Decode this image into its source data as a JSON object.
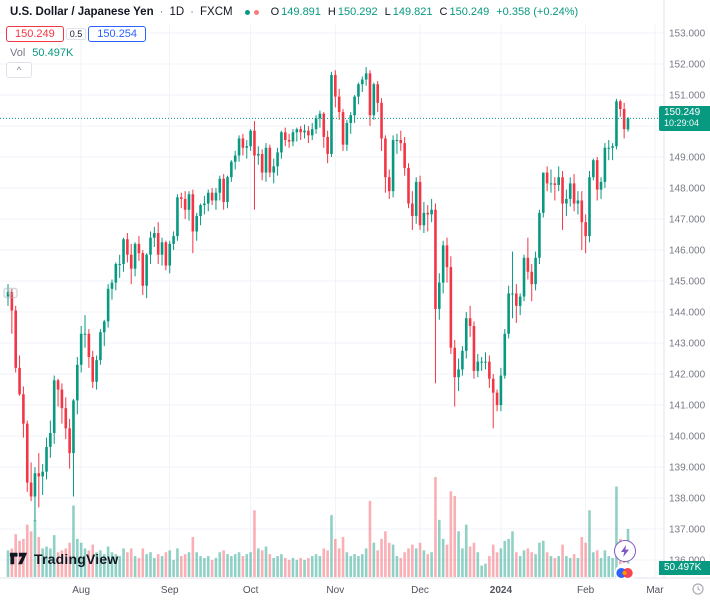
{
  "header": {
    "symbol": "U.S. Dollar / Japanese Yen",
    "sep1": "·",
    "interval": "1D",
    "sep2": "·",
    "exchange": "FXCM",
    "dots": [
      "#089981",
      "#f77c80"
    ],
    "ohlc": {
      "oL": "O",
      "o": "149.891",
      "hL": "H",
      "h": "150.292",
      "lL": "L",
      "l": "149.821",
      "cL": "C",
      "c": "150.249",
      "change": "+0.358 (+0.24%)"
    }
  },
  "trade": {
    "sell": "150.249",
    "spread": "0.5",
    "buy": "150.254"
  },
  "volume_row": {
    "label": "Vol",
    "value": "50.497K"
  },
  "controls": {
    "collapse": "^"
  },
  "logo_text": "TradingView",
  "price_label": {
    "price": "150.249",
    "countdown": "10:29:04"
  },
  "volume_axis_label": "50.497K",
  "chart_data": {
    "type": "candlestick",
    "title": "U.S. Dollar / Japanese Yen",
    "interval": "1D",
    "exchange": "FXCM",
    "last_price": 150.249,
    "last_volume_k": 50.497,
    "ohlc_display": {
      "open": 149.891,
      "high": 150.292,
      "low": 149.821,
      "close": 150.249,
      "change": 0.358,
      "change_pct": 0.24
    },
    "y_axis": {
      "min": 136,
      "max": 153,
      "step": 1,
      "grid": true
    },
    "price_ticks": [
      "153.000",
      "152.000",
      "151.000",
      "150.000",
      "149.000",
      "148.000",
      "147.000",
      "146.000",
      "145.000",
      "144.000",
      "143.000",
      "142.000",
      "141.000",
      "140.000",
      "139.000",
      "138.000",
      "137.000",
      "136.000"
    ],
    "month_ticks": [
      {
        "label": "Aug",
        "i": 19
      },
      {
        "label": "Sep",
        "i": 42
      },
      {
        "label": "Oct",
        "i": 63
      },
      {
        "label": "Nov",
        "i": 85
      },
      {
        "label": "Dec",
        "i": 107
      },
      {
        "label": "2024",
        "i": 128,
        "bold": true
      },
      {
        "label": "Feb",
        "i": 150
      },
      {
        "label": "Mar",
        "i": 168
      }
    ],
    "colors": {
      "up": "#089981",
      "down": "#f23645",
      "vol_up": "rgba(8,153,129,0.45)",
      "vol_down": "rgba(242,54,69,0.40)",
      "grid": "#f0f3fa",
      "axis_text": "#787b86",
      "time_text": "#50535e",
      "price_line": "#089981",
      "axis_border": "#e0e3eb"
    },
    "candles_format": [
      "open",
      "high",
      "low",
      "close",
      "volume_k"
    ],
    "candles": [
      [
        144.5,
        144.9,
        144.2,
        144.65,
        28
      ],
      [
        144.65,
        144.75,
        143.3,
        144.05,
        30
      ],
      [
        144.05,
        144.2,
        142.05,
        142.2,
        45
      ],
      [
        142.2,
        142.6,
        141.3,
        141.35,
        38
      ],
      [
        141.35,
        141.6,
        139.95,
        140.4,
        40
      ],
      [
        140.4,
        140.5,
        138.2,
        138.5,
        55
      ],
      [
        138.5,
        139.15,
        137.9,
        138.05,
        48
      ],
      [
        138.05,
        139.0,
        137.25,
        138.8,
        60
      ],
      [
        138.8,
        139.45,
        137.7,
        138.7,
        42
      ],
      [
        138.7,
        139.1,
        138.1,
        138.85,
        30
      ],
      [
        138.85,
        139.95,
        138.6,
        139.65,
        32
      ],
      [
        139.65,
        140.5,
        139.3,
        140.1,
        30
      ],
      [
        140.1,
        141.95,
        139.75,
        141.8,
        44
      ],
      [
        141.8,
        141.85,
        140.95,
        141.5,
        26
      ],
      [
        141.5,
        141.7,
        140.4,
        140.9,
        28
      ],
      [
        140.9,
        141.25,
        139.9,
        140.25,
        30
      ],
      [
        140.25,
        140.55,
        138.95,
        139.45,
        36
      ],
      [
        139.45,
        141.2,
        138.05,
        141.15,
        75
      ],
      [
        141.15,
        142.55,
        140.7,
        142.3,
        40
      ],
      [
        142.3,
        143.55,
        142.05,
        143.3,
        36
      ],
      [
        143.3,
        143.9,
        142.85,
        143.3,
        30
      ],
      [
        143.3,
        143.45,
        142.2,
        142.55,
        28
      ],
      [
        142.55,
        142.75,
        141.55,
        141.75,
        34
      ],
      [
        141.75,
        142.6,
        141.5,
        142.45,
        26
      ],
      [
        142.45,
        143.45,
        142.3,
        143.35,
        28
      ],
      [
        143.35,
        143.75,
        142.9,
        143.7,
        24
      ],
      [
        143.7,
        144.9,
        143.5,
        144.75,
        32
      ],
      [
        144.75,
        145.05,
        144.4,
        144.95,
        26
      ],
      [
        144.95,
        145.6,
        144.7,
        145.55,
        24
      ],
      [
        145.55,
        145.85,
        145.1,
        145.55,
        22
      ],
      [
        145.55,
        146.4,
        145.3,
        146.35,
        30
      ],
      [
        146.35,
        146.55,
        145.6,
        145.85,
        26
      ],
      [
        145.85,
        146.2,
        144.9,
        145.4,
        30
      ],
      [
        145.4,
        146.25,
        145.15,
        146.2,
        22
      ],
      [
        146.2,
        146.45,
        145.65,
        145.9,
        20
      ],
      [
        145.9,
        146.0,
        144.55,
        144.85,
        30
      ],
      [
        144.85,
        145.9,
        144.45,
        145.85,
        24
      ],
      [
        145.85,
        146.6,
        145.55,
        146.4,
        26
      ],
      [
        146.4,
        146.75,
        146.1,
        146.55,
        20
      ],
      [
        146.55,
        146.9,
        145.55,
        145.85,
        24
      ],
      [
        145.85,
        146.4,
        145.5,
        146.25,
        22
      ],
      [
        146.25,
        146.3,
        145.35,
        145.5,
        26
      ],
      [
        145.5,
        146.3,
        145.25,
        146.2,
        28
      ],
      [
        146.2,
        146.6,
        146.0,
        146.45,
        18
      ],
      [
        146.45,
        147.8,
        146.3,
        147.7,
        30
      ],
      [
        147.7,
        147.85,
        147.35,
        147.65,
        22
      ],
      [
        147.65,
        147.9,
        147.0,
        147.3,
        24
      ],
      [
        147.3,
        147.9,
        146.95,
        147.8,
        26
      ],
      [
        147.8,
        147.95,
        145.9,
        146.6,
        42
      ],
      [
        146.6,
        147.2,
        146.3,
        147.1,
        26
      ],
      [
        147.1,
        147.5,
        146.8,
        147.45,
        22
      ],
      [
        147.45,
        147.75,
        147.15,
        147.5,
        20
      ],
      [
        147.5,
        147.95,
        147.25,
        147.85,
        22
      ],
      [
        147.85,
        148.0,
        147.45,
        147.6,
        18
      ],
      [
        147.6,
        148.0,
        147.3,
        147.85,
        20
      ],
      [
        147.85,
        148.4,
        147.6,
        148.3,
        26
      ],
      [
        148.3,
        148.45,
        147.3,
        147.55,
        28
      ],
      [
        147.55,
        148.4,
        147.35,
        148.35,
        24
      ],
      [
        148.35,
        148.9,
        148.2,
        148.85,
        22
      ],
      [
        148.85,
        149.2,
        148.6,
        149.05,
        24
      ],
      [
        149.05,
        149.7,
        148.85,
        149.6,
        26
      ],
      [
        149.6,
        149.75,
        149.05,
        149.3,
        22
      ],
      [
        149.3,
        149.55,
        148.95,
        149.35,
        24
      ],
      [
        149.35,
        149.9,
        149.2,
        149.85,
        26
      ],
      [
        149.85,
        150.16,
        147.3,
        149.05,
        70
      ],
      [
        149.05,
        149.35,
        148.75,
        149.1,
        30
      ],
      [
        149.1,
        149.25,
        148.25,
        148.5,
        28
      ],
      [
        148.5,
        149.45,
        148.2,
        149.3,
        32
      ],
      [
        149.3,
        149.4,
        148.35,
        148.5,
        24
      ],
      [
        148.5,
        148.95,
        148.15,
        148.7,
        20
      ],
      [
        148.7,
        149.3,
        148.4,
        149.15,
        22
      ],
      [
        149.15,
        149.85,
        148.95,
        149.8,
        24
      ],
      [
        149.8,
        149.95,
        149.35,
        149.55,
        20
      ],
      [
        149.55,
        149.75,
        149.3,
        149.5,
        18
      ],
      [
        149.5,
        149.9,
        149.35,
        149.8,
        20
      ],
      [
        149.8,
        149.95,
        149.5,
        149.9,
        18
      ],
      [
        149.9,
        150.0,
        149.55,
        149.8,
        20
      ],
      [
        149.8,
        150.05,
        149.6,
        149.85,
        18
      ],
      [
        149.85,
        150.0,
        149.45,
        149.7,
        20
      ],
      [
        149.7,
        150.1,
        149.55,
        149.9,
        22
      ],
      [
        149.9,
        150.35,
        149.75,
        150.25,
        24
      ],
      [
        150.25,
        150.5,
        149.95,
        150.4,
        22
      ],
      [
        150.4,
        150.45,
        149.3,
        149.65,
        30
      ],
      [
        149.65,
        149.85,
        148.8,
        149.1,
        28
      ],
      [
        149.1,
        151.75,
        149.0,
        151.65,
        65
      ],
      [
        151.65,
        151.8,
        150.6,
        150.95,
        40
      ],
      [
        150.95,
        151.2,
        150.2,
        150.45,
        30
      ],
      [
        150.45,
        150.55,
        149.2,
        149.4,
        42
      ],
      [
        149.4,
        150.2,
        149.2,
        150.1,
        26
      ],
      [
        150.1,
        150.45,
        149.75,
        150.35,
        22
      ],
      [
        150.35,
        151.0,
        150.1,
        150.95,
        24
      ],
      [
        150.95,
        151.4,
        150.7,
        151.35,
        22
      ],
      [
        151.35,
        151.6,
        151.1,
        151.5,
        24
      ],
      [
        151.5,
        151.9,
        151.3,
        151.7,
        30
      ],
      [
        151.7,
        151.8,
        150.0,
        150.35,
        80
      ],
      [
        150.35,
        151.4,
        150.2,
        151.35,
        36
      ],
      [
        151.35,
        151.45,
        150.45,
        150.75,
        28
      ],
      [
        150.75,
        150.9,
        149.2,
        149.6,
        40
      ],
      [
        149.6,
        149.7,
        147.85,
        148.35,
        48
      ],
      [
        148.35,
        148.6,
        147.65,
        147.9,
        36
      ],
      [
        147.9,
        149.7,
        147.7,
        149.55,
        34
      ],
      [
        149.55,
        149.75,
        149.1,
        149.55,
        22
      ],
      [
        149.55,
        149.85,
        149.2,
        149.45,
        20
      ],
      [
        149.45,
        149.65,
        148.4,
        148.65,
        26
      ],
      [
        148.65,
        148.8,
        147.35,
        147.5,
        30
      ],
      [
        147.5,
        147.9,
        146.65,
        147.1,
        34
      ],
      [
        147.1,
        148.35,
        146.85,
        148.2,
        30
      ],
      [
        148.2,
        148.4,
        146.65,
        146.8,
        36
      ],
      [
        146.8,
        147.55,
        146.55,
        147.2,
        28
      ],
      [
        147.2,
        147.45,
        146.6,
        147.15,
        24
      ],
      [
        147.15,
        147.65,
        146.9,
        147.3,
        26
      ],
      [
        147.3,
        147.5,
        141.7,
        144.1,
        105
      ],
      [
        144.1,
        145.25,
        143.75,
        144.95,
        60
      ],
      [
        144.95,
        146.3,
        144.6,
        146.15,
        40
      ],
      [
        146.15,
        146.4,
        144.95,
        145.45,
        34
      ],
      [
        145.45,
        145.8,
        142.65,
        142.85,
        90
      ],
      [
        142.85,
        143.1,
        140.95,
        141.9,
        85
      ],
      [
        141.9,
        142.5,
        141.45,
        142.15,
        48
      ],
      [
        142.15,
        142.9,
        141.95,
        142.75,
        30
      ],
      [
        142.75,
        144.0,
        142.5,
        143.8,
        55
      ],
      [
        143.8,
        144.2,
        143.2,
        143.55,
        32
      ],
      [
        143.55,
        143.7,
        141.85,
        142.1,
        36
      ],
      [
        142.1,
        142.65,
        141.9,
        142.4,
        26
      ],
      [
        142.4,
        142.55,
        142.1,
        142.4,
        12
      ],
      [
        142.4,
        142.7,
        142.15,
        142.4,
        14
      ],
      [
        142.4,
        142.6,
        141.55,
        141.85,
        22
      ],
      [
        141.85,
        142.0,
        140.25,
        141.4,
        34
      ],
      [
        141.4,
        141.5,
        140.8,
        141.0,
        26
      ],
      [
        141.0,
        142.2,
        140.8,
        141.95,
        30
      ],
      [
        141.95,
        143.45,
        141.85,
        143.3,
        38
      ],
      [
        143.3,
        144.85,
        143.15,
        144.6,
        40
      ],
      [
        144.6,
        145.95,
        143.8,
        144.6,
        48
      ],
      [
        144.6,
        144.9,
        143.65,
        144.2,
        26
      ],
      [
        144.2,
        144.6,
        143.9,
        144.5,
        22
      ],
      [
        144.5,
        145.85,
        144.35,
        145.75,
        28
      ],
      [
        145.75,
        146.4,
        145.05,
        145.3,
        30
      ],
      [
        145.3,
        145.55,
        144.35,
        144.9,
        26
      ],
      [
        144.9,
        145.95,
        144.7,
        145.75,
        24
      ],
      [
        145.75,
        147.3,
        145.55,
        147.2,
        36
      ],
      [
        147.2,
        148.5,
        147.05,
        148.5,
        38
      ],
      [
        148.5,
        148.7,
        147.9,
        148.15,
        26
      ],
      [
        148.15,
        148.6,
        147.85,
        148.15,
        22
      ],
      [
        148.15,
        148.35,
        147.6,
        148.1,
        20
      ],
      [
        148.1,
        148.7,
        147.9,
        148.35,
        22
      ],
      [
        148.35,
        148.55,
        146.65,
        147.5,
        34
      ],
      [
        147.5,
        147.95,
        147.1,
        147.65,
        22
      ],
      [
        147.65,
        148.35,
        147.4,
        148.15,
        20
      ],
      [
        148.15,
        148.45,
        147.25,
        147.5,
        24
      ],
      [
        147.5,
        147.9,
        147.15,
        147.6,
        20
      ],
      [
        147.6,
        147.9,
        146.0,
        146.9,
        42
      ],
      [
        146.9,
        147.15,
        145.9,
        146.45,
        36
      ],
      [
        146.45,
        148.55,
        146.25,
        148.35,
        70
      ],
      [
        148.35,
        148.95,
        148.25,
        148.9,
        26
      ],
      [
        148.9,
        149.0,
        147.6,
        147.95,
        28
      ],
      [
        147.95,
        148.35,
        147.65,
        148.2,
        20
      ],
      [
        148.2,
        149.45,
        148.0,
        149.3,
        28
      ],
      [
        149.3,
        149.55,
        148.9,
        149.3,
        22
      ],
      [
        149.3,
        149.45,
        148.9,
        149.35,
        20
      ],
      [
        149.35,
        150.88,
        149.25,
        150.8,
        95
      ],
      [
        150.8,
        150.85,
        150.3,
        150.55,
        40
      ],
      [
        150.55,
        150.75,
        149.6,
        149.9,
        36
      ],
      [
        149.891,
        150.292,
        149.821,
        150.249,
        50.497
      ]
    ]
  }
}
